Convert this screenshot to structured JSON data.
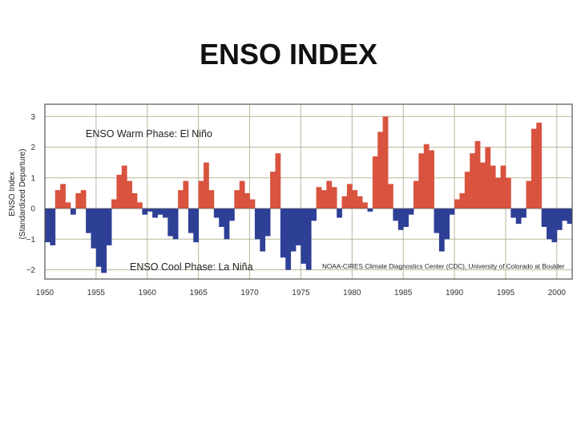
{
  "slide": {
    "title": "ENSO INDEX"
  },
  "chart_data": {
    "type": "bar",
    "ylabel_lines": [
      "ENSO Index",
      "(Standardized Departure)"
    ],
    "xlim": [
      1950,
      2001.5
    ],
    "ylim": [
      -2.3,
      3.4
    ],
    "x_ticks": [
      1950,
      1955,
      1960,
      1965,
      1970,
      1975,
      1980,
      1985,
      1990,
      1995,
      2000
    ],
    "y_ticks": [
      -2,
      -1,
      0,
      1,
      2,
      3
    ],
    "y_tick_labels": [
      "−2",
      "−1",
      "0",
      "1",
      "2",
      "3"
    ],
    "grid": true,
    "annotations": {
      "warm": "ENSO Warm Phase: El Niño",
      "cool": "ENSO Cool Phase: La Niña",
      "credit": "NOAA-CIRES Climate Diagnostics Center (CDC), University of Colorado at Boulder"
    },
    "colors": {
      "positive": "#d9533f",
      "negative": "#2e3f96",
      "grid": "#b8b89a",
      "frame": "#555555"
    },
    "series": [
      {
        "x": [
          1950.0,
          1950.5,
          1951.0,
          1951.5,
          1952.0,
          1952.5,
          1953.0,
          1953.5,
          1954.0,
          1954.5,
          1955.0,
          1955.5,
          1956.0,
          1956.5,
          1957.0,
          1957.5,
          1958.0,
          1958.5,
          1959.0,
          1959.5,
          1960.0,
          1960.5,
          1961.0,
          1961.5,
          1962.0,
          1962.5,
          1963.0,
          1963.5,
          1964.0,
          1964.5,
          1965.0,
          1965.5,
          1966.0,
          1966.5,
          1967.0,
          1967.5,
          1968.0,
          1968.5,
          1969.0,
          1969.5,
          1970.0,
          1970.5,
          1971.0,
          1971.5,
          1972.0,
          1972.5,
          1973.0,
          1973.5,
          1974.0,
          1974.5,
          1975.0,
          1975.5,
          1976.0,
          1976.5,
          1977.0,
          1977.5,
          1978.0,
          1978.5,
          1979.0,
          1979.5,
          1980.0,
          1980.5,
          1981.0,
          1981.5,
          1982.0,
          1982.5,
          1983.0,
          1983.5,
          1984.0,
          1984.5,
          1985.0,
          1985.5,
          1986.0,
          1986.5,
          1987.0,
          1987.5,
          1988.0,
          1988.5,
          1989.0,
          1989.5,
          1990.0,
          1990.5,
          1991.0,
          1991.5,
          1992.0,
          1992.5,
          1993.0,
          1993.5,
          1994.0,
          1994.5,
          1995.0,
          1995.5,
          1996.0,
          1996.5,
          1997.0,
          1997.5,
          1998.0,
          1998.5,
          1999.0,
          1999.5,
          2000.0,
          2000.5,
          2001.0
        ],
        "y": [
          -1.1,
          -1.2,
          0.6,
          0.8,
          0.2,
          -0.2,
          0.5,
          0.6,
          -0.8,
          -1.3,
          -1.9,
          -2.1,
          -1.2,
          0.3,
          1.1,
          1.4,
          0.9,
          0.5,
          0.2,
          -0.2,
          -0.1,
          -0.3,
          -0.2,
          -0.3,
          -0.9,
          -1.0,
          0.6,
          0.9,
          -0.8,
          -1.1,
          0.9,
          1.5,
          0.6,
          -0.3,
          -0.6,
          -1.0,
          -0.4,
          0.6,
          0.9,
          0.5,
          0.3,
          -1.0,
          -1.4,
          -0.9,
          1.2,
          1.8,
          -1.6,
          -2.0,
          -1.4,
          -1.2,
          -1.8,
          -2.0,
          -0.4,
          0.7,
          0.6,
          0.9,
          0.7,
          -0.3,
          0.4,
          0.8,
          0.6,
          0.4,
          0.2,
          -0.1,
          1.7,
          2.5,
          3.0,
          0.8,
          -0.4,
          -0.7,
          -0.6,
          -0.2,
          0.9,
          1.8,
          2.1,
          1.9,
          -0.8,
          -1.4,
          -1.0,
          -0.2,
          0.3,
          0.5,
          1.2,
          1.8,
          2.2,
          1.5,
          2.0,
          1.4,
          1.0,
          1.4,
          1.0,
          -0.3,
          -0.5,
          -0.3,
          0.9,
          2.6,
          2.8,
          -0.6,
          -1.0,
          -1.1,
          -0.7,
          -0.4,
          -0.5
        ]
      }
    ]
  }
}
